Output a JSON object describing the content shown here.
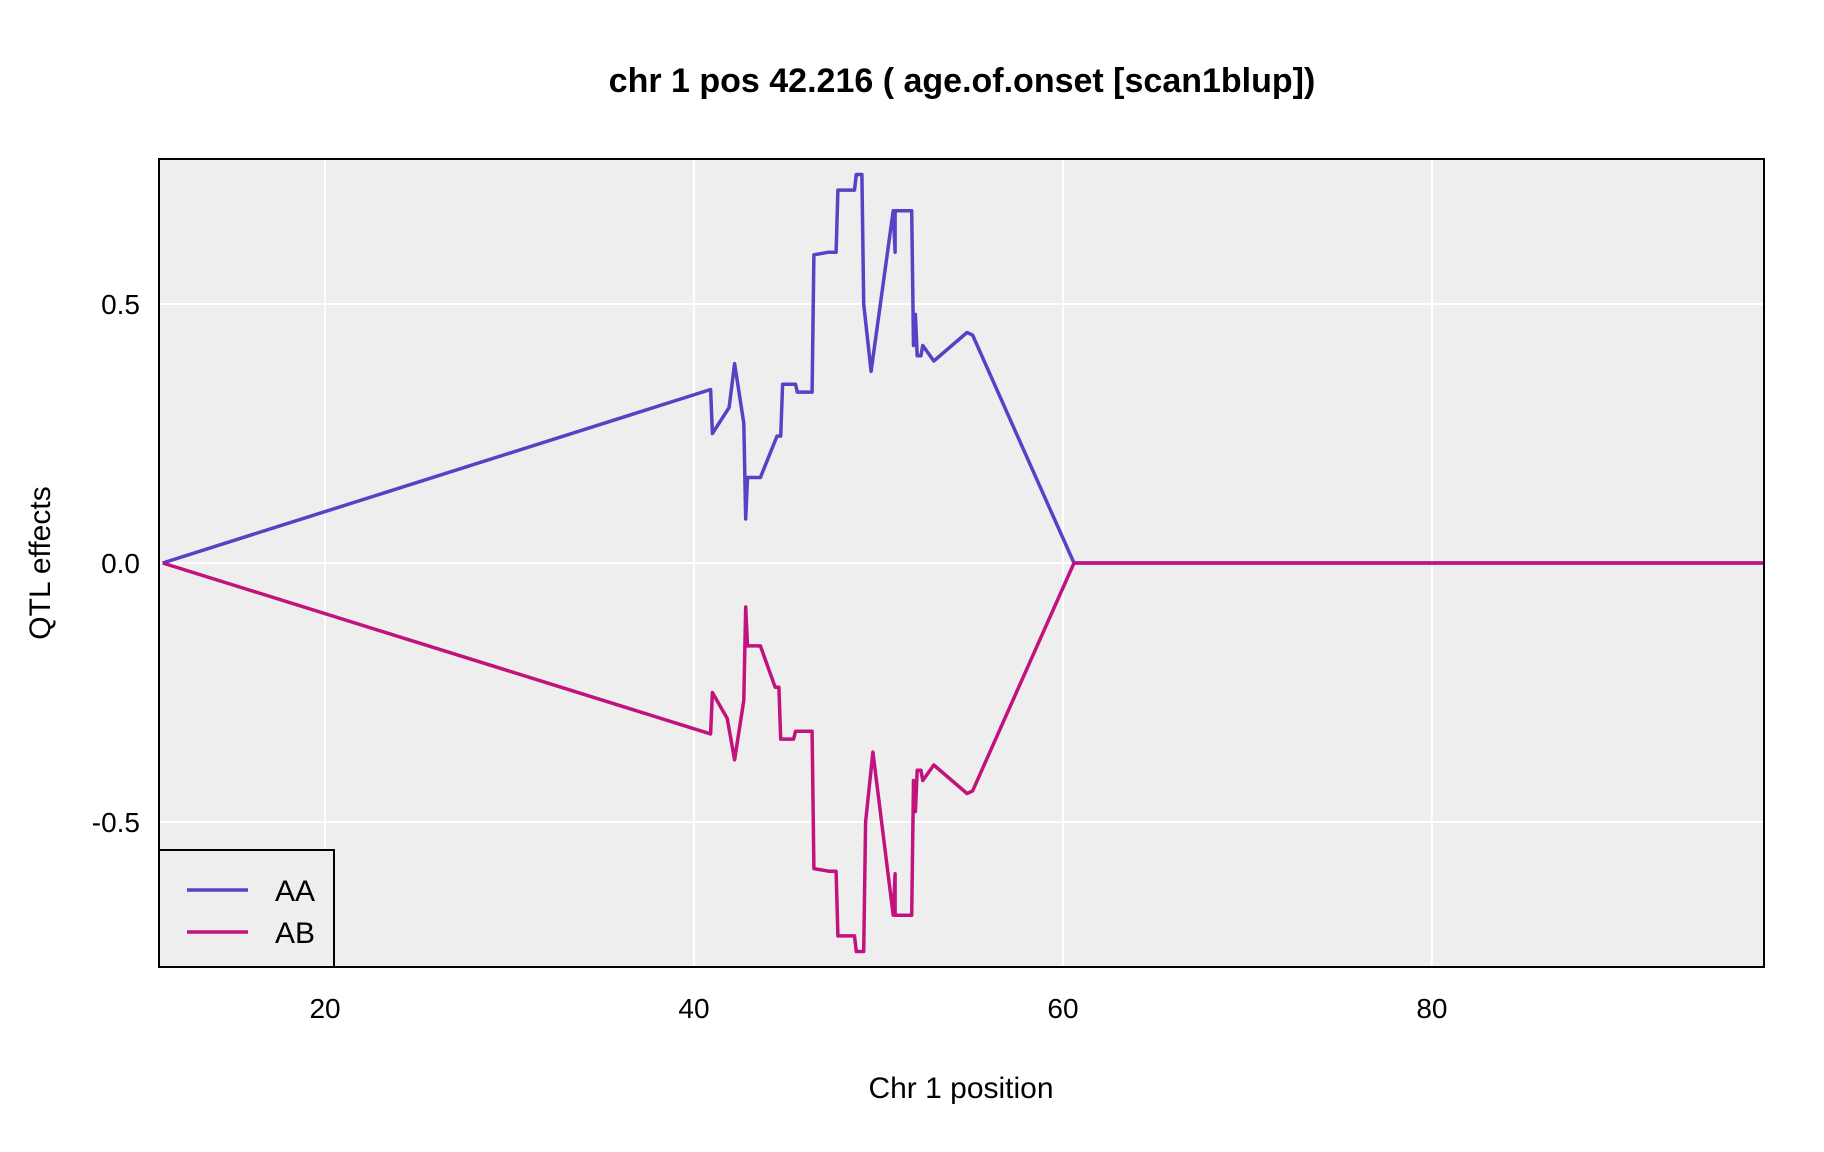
{
  "chart_data": {
    "type": "line",
    "title": "chr 1 pos 42.216 ( age.of.onset  [scan1blup])",
    "xlabel": "Chr 1 position",
    "ylabel": "QTL effects",
    "xlim": [
      11,
      98
    ],
    "ylim": [
      -0.78,
      0.78
    ],
    "xticks": [
      20,
      40,
      60,
      80
    ],
    "xtick_labels": [
      "20",
      "40",
      "60",
      "80"
    ],
    "yticks": [
      -0.5,
      0.0,
      0.5
    ],
    "ytick_labels": [
      "-0.5",
      "0.0",
      "0.5"
    ],
    "grid": true,
    "legend_position": "bottom-left",
    "series": [
      {
        "name": "AA",
        "color": "#5542c5",
        "points": [
          [
            11.2,
            0.0
          ],
          [
            40.9,
            0.335
          ],
          [
            41.0,
            0.25
          ],
          [
            41.9,
            0.3
          ],
          [
            42.2,
            0.385
          ],
          [
            42.7,
            0.27
          ],
          [
            42.8,
            0.085
          ],
          [
            42.9,
            0.165
          ],
          [
            43.6,
            0.165
          ],
          [
            44.5,
            0.245
          ],
          [
            44.7,
            0.245
          ],
          [
            44.8,
            0.345
          ],
          [
            45.5,
            0.345
          ],
          [
            45.6,
            0.33
          ],
          [
            46.4,
            0.33
          ],
          [
            46.5,
            0.595
          ],
          [
            47.3,
            0.6
          ],
          [
            47.7,
            0.6
          ],
          [
            47.8,
            0.72
          ],
          [
            48.7,
            0.72
          ],
          [
            48.8,
            0.75
          ],
          [
            49.1,
            0.75
          ],
          [
            49.2,
            0.5
          ],
          [
            49.6,
            0.37
          ],
          [
            50.8,
            0.68
          ],
          [
            50.9,
            0.6
          ],
          [
            50.9,
            0.68
          ],
          [
            51.8,
            0.68
          ],
          [
            51.9,
            0.42
          ],
          [
            52.0,
            0.48
          ],
          [
            52.1,
            0.4
          ],
          [
            52.3,
            0.4
          ],
          [
            52.4,
            0.42
          ],
          [
            53.0,
            0.39
          ],
          [
            54.8,
            0.445
          ],
          [
            55.1,
            0.44
          ],
          [
            60.6,
            0.0
          ],
          [
            98.0,
            0.0
          ]
        ]
      },
      {
        "name": "AB",
        "color": "#c1127d",
        "points": [
          [
            11.2,
            0.0
          ],
          [
            40.9,
            -0.33
          ],
          [
            41.0,
            -0.25
          ],
          [
            41.8,
            -0.3
          ],
          [
            42.2,
            -0.38
          ],
          [
            42.7,
            -0.265
          ],
          [
            42.8,
            -0.085
          ],
          [
            42.9,
            -0.16
          ],
          [
            43.6,
            -0.16
          ],
          [
            44.4,
            -0.24
          ],
          [
            44.6,
            -0.24
          ],
          [
            44.7,
            -0.34
          ],
          [
            45.4,
            -0.34
          ],
          [
            45.5,
            -0.325
          ],
          [
            46.4,
            -0.325
          ],
          [
            46.5,
            -0.59
          ],
          [
            47.3,
            -0.595
          ],
          [
            47.7,
            -0.595
          ],
          [
            47.8,
            -0.72
          ],
          [
            48.7,
            -0.72
          ],
          [
            48.8,
            -0.75
          ],
          [
            49.2,
            -0.75
          ],
          [
            49.3,
            -0.5
          ],
          [
            49.7,
            -0.365
          ],
          [
            50.8,
            -0.68
          ],
          [
            50.9,
            -0.6
          ],
          [
            50.9,
            -0.68
          ],
          [
            51.8,
            -0.68
          ],
          [
            51.9,
            -0.42
          ],
          [
            52.0,
            -0.48
          ],
          [
            52.1,
            -0.4
          ],
          [
            52.3,
            -0.4
          ],
          [
            52.4,
            -0.42
          ],
          [
            53.0,
            -0.39
          ],
          [
            54.8,
            -0.445
          ],
          [
            55.1,
            -0.44
          ],
          [
            60.6,
            0.0
          ],
          [
            98.0,
            0.0
          ]
        ]
      }
    ]
  }
}
